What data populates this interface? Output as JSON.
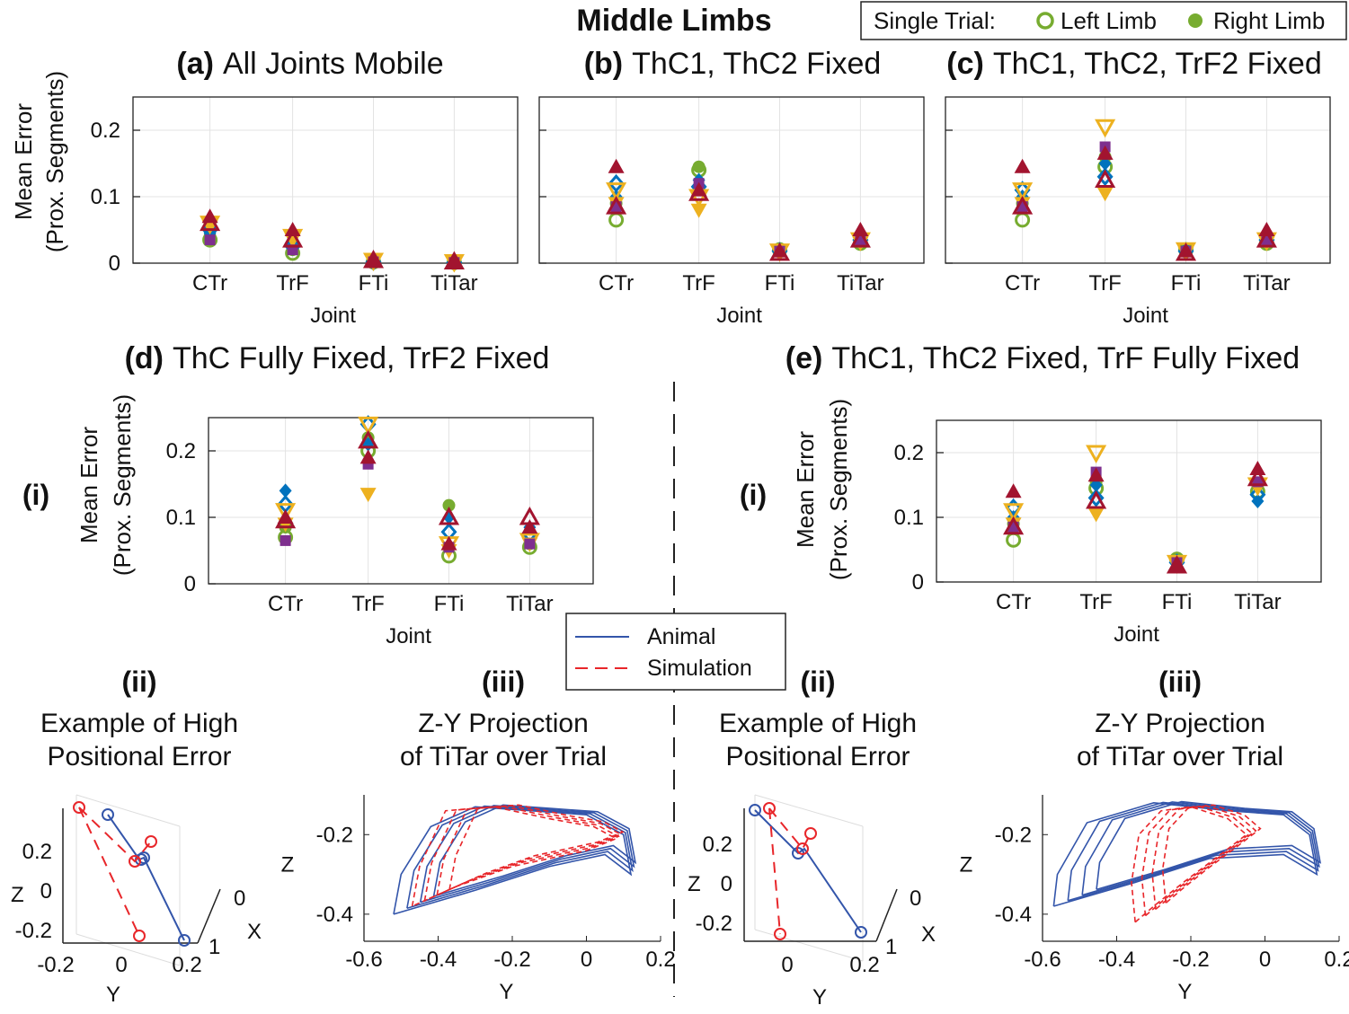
{
  "figure": {
    "main_title": "Middle Limbs",
    "legend": {
      "prefix": "Single Trial:",
      "left": "Left Limb",
      "right": "Right Limb"
    },
    "line_legend": {
      "animal": "Animal",
      "simulation": "Simulation"
    },
    "section_labels": {
      "i": "(i)",
      "ii": "(ii)",
      "iii": "(iii)"
    },
    "ii_title": [
      "Example of High",
      "Positional Error"
    ],
    "iii_title": [
      "Z-Y Projection",
      "of TiTar over Trial"
    ],
    "ylabel": [
      "Mean Error",
      "(Prox. Segments)"
    ],
    "xlabel": "Joint",
    "colors": {
      "green": "#77ac30",
      "blue": "#0072bd",
      "yellow": "#edb120",
      "purple": "#7e2f8e",
      "red": "#a2142f",
      "animal": "#3355aa",
      "simulation": "#e8262a"
    }
  },
  "chart_data": [
    {
      "id": "a",
      "type": "scatter",
      "label": "(a)",
      "title": "All Joints Mobile",
      "categories": [
        "CTr",
        "TrF",
        "FTi",
        "TiTar"
      ],
      "ylim": [
        0,
        0.25
      ],
      "yticks": [
        "0",
        "0.1",
        "0.2"
      ],
      "show_ytick_labels": true,
      "series": [
        {
          "marker": "circle-open",
          "color": "green",
          "values": [
            0.035,
            0.015,
            0.002,
            0.001
          ]
        },
        {
          "marker": "circle-filled",
          "color": "green",
          "values": [
            0.04,
            0.02,
            0.003,
            0.001
          ]
        },
        {
          "marker": "diamond-open",
          "color": "blue",
          "values": [
            0.05,
            0.025,
            0.002,
            0.001
          ]
        },
        {
          "marker": "diamond-filled",
          "color": "blue",
          "values": [
            0.045,
            0.03,
            0.003,
            0.002
          ]
        },
        {
          "marker": "tri-down-open",
          "color": "yellow",
          "values": [
            0.06,
            0.04,
            0.004,
            0.002
          ]
        },
        {
          "marker": "tri-down-filled",
          "color": "yellow",
          "values": [
            0.055,
            0.035,
            0.003,
            0.002
          ]
        },
        {
          "marker": "square-filled",
          "color": "purple",
          "values": [
            0.035,
            0.02,
            0.002,
            0.001
          ]
        },
        {
          "marker": "tri-up-open",
          "color": "red",
          "values": [
            0.06,
            0.035,
            0.004,
            0.002
          ]
        },
        {
          "marker": "tri-up-filled",
          "color": "red",
          "values": [
            0.07,
            0.05,
            0.005,
            0.002
          ]
        }
      ]
    },
    {
      "id": "b",
      "type": "scatter",
      "label": "(b)",
      "title": "ThC1, ThC2 Fixed",
      "categories": [
        "CTr",
        "TrF",
        "FTi",
        "TiTar"
      ],
      "ylim": [
        0,
        0.25
      ],
      "yticks": [
        "0",
        "0.1",
        "0.2"
      ],
      "show_ytick_labels": false,
      "series": [
        {
          "marker": "circle-open",
          "color": "green",
          "values": [
            0.065,
            0.14,
            0.02,
            0.03
          ]
        },
        {
          "marker": "circle-filled",
          "color": "green",
          "values": [
            0.09,
            0.145,
            0.022,
            0.035
          ]
        },
        {
          "marker": "diamond-open",
          "color": "blue",
          "values": [
            0.12,
            0.115,
            0.018,
            0.035
          ]
        },
        {
          "marker": "diamond-filled",
          "color": "blue",
          "values": [
            0.1,
            0.125,
            0.02,
            0.04
          ]
        },
        {
          "marker": "tri-down-open",
          "color": "yellow",
          "values": [
            0.11,
            0.1,
            0.018,
            0.035
          ]
        },
        {
          "marker": "tri-down-filled",
          "color": "yellow",
          "values": [
            0.09,
            0.08,
            0.015,
            0.03
          ]
        },
        {
          "marker": "square-filled",
          "color": "purple",
          "values": [
            0.085,
            0.12,
            0.018,
            0.035
          ]
        },
        {
          "marker": "tri-up-open",
          "color": "red",
          "values": [
            0.085,
            0.105,
            0.015,
            0.035
          ]
        },
        {
          "marker": "tri-up-filled",
          "color": "red",
          "values": [
            0.145,
            0.11,
            0.018,
            0.05
          ]
        }
      ]
    },
    {
      "id": "c",
      "type": "scatter",
      "label": "(c)",
      "title": "ThC1, ThC2, TrF2 Fixed",
      "categories": [
        "CTr",
        "TrF",
        "FTi",
        "TiTar"
      ],
      "ylim": [
        0,
        0.25
      ],
      "yticks": [
        "0",
        "0.1",
        "0.2"
      ],
      "show_ytick_labels": false,
      "series": [
        {
          "marker": "circle-open",
          "color": "green",
          "values": [
            0.065,
            0.145,
            0.02,
            0.03
          ]
        },
        {
          "marker": "circle-filled",
          "color": "green",
          "values": [
            0.09,
            0.16,
            0.022,
            0.035
          ]
        },
        {
          "marker": "diamond-open",
          "color": "blue",
          "values": [
            0.11,
            0.13,
            0.018,
            0.035
          ]
        },
        {
          "marker": "diamond-filled",
          "color": "blue",
          "values": [
            0.1,
            0.15,
            0.02,
            0.04
          ]
        },
        {
          "marker": "tri-down-open",
          "color": "yellow",
          "values": [
            0.11,
            0.205,
            0.02,
            0.035
          ]
        },
        {
          "marker": "tri-down-filled",
          "color": "yellow",
          "values": [
            0.09,
            0.105,
            0.015,
            0.03
          ]
        },
        {
          "marker": "square-filled",
          "color": "purple",
          "values": [
            0.085,
            0.175,
            0.018,
            0.035
          ]
        },
        {
          "marker": "tri-up-open",
          "color": "red",
          "values": [
            0.085,
            0.125,
            0.015,
            0.035
          ]
        },
        {
          "marker": "tri-up-filled",
          "color": "red",
          "values": [
            0.145,
            0.165,
            0.018,
            0.05
          ]
        }
      ]
    },
    {
      "id": "d",
      "type": "scatter",
      "label": "(d)",
      "title": "ThC Fully Fixed, TrF2 Fixed",
      "categories": [
        "CTr",
        "TrF",
        "FTi",
        "TiTar"
      ],
      "ylim": [
        0,
        0.25
      ],
      "yticks": [
        "0",
        "0.1",
        "0.2"
      ],
      "show_ytick_labels": true,
      "series": [
        {
          "marker": "circle-open",
          "color": "green",
          "values": [
            0.07,
            0.2,
            0.042,
            0.055
          ]
        },
        {
          "marker": "circle-filled",
          "color": "green",
          "values": [
            0.085,
            0.22,
            0.118,
            0.06
          ]
        },
        {
          "marker": "diamond-open",
          "color": "blue",
          "values": [
            0.12,
            0.24,
            0.078,
            0.075
          ]
        },
        {
          "marker": "diamond-filled",
          "color": "blue",
          "values": [
            0.14,
            0.21,
            0.1,
            0.085
          ]
        },
        {
          "marker": "tri-down-open",
          "color": "yellow",
          "values": [
            0.11,
            0.24,
            0.06,
            0.065
          ]
        },
        {
          "marker": "tri-down-filled",
          "color": "yellow",
          "values": [
            0.09,
            0.135,
            0.05,
            0.06
          ]
        },
        {
          "marker": "square-filled",
          "color": "purple",
          "values": [
            0.065,
            0.18,
            0.055,
            0.06
          ]
        },
        {
          "marker": "tri-up-open",
          "color": "red",
          "values": [
            0.095,
            0.215,
            0.1,
            0.1
          ]
        },
        {
          "marker": "tri-up-filled",
          "color": "red",
          "values": [
            0.1,
            0.19,
            0.06,
            0.085
          ]
        }
      ]
    },
    {
      "id": "e",
      "type": "scatter",
      "label": "(e)",
      "title": "ThC1, ThC2 Fixed, TrF Fully Fixed",
      "categories": [
        "CTr",
        "TrF",
        "FTi",
        "TiTar"
      ],
      "ylim": [
        0,
        0.25
      ],
      "yticks": [
        "0",
        "0.1",
        "0.2"
      ],
      "show_ytick_labels": true,
      "series": [
        {
          "marker": "circle-open",
          "color": "green",
          "values": [
            0.065,
            0.145,
            0.035,
            0.14
          ]
        },
        {
          "marker": "circle-filled",
          "color": "green",
          "values": [
            0.09,
            0.155,
            0.037,
            0.15
          ]
        },
        {
          "marker": "diamond-open",
          "color": "blue",
          "values": [
            0.115,
            0.13,
            0.03,
            0.135
          ]
        },
        {
          "marker": "diamond-filled",
          "color": "blue",
          "values": [
            0.1,
            0.15,
            0.03,
            0.125
          ]
        },
        {
          "marker": "tri-down-open",
          "color": "yellow",
          "values": [
            0.11,
            0.2,
            0.03,
            0.15
          ]
        },
        {
          "marker": "tri-down-filled",
          "color": "yellow",
          "values": [
            0.09,
            0.105,
            0.025,
            0.145
          ]
        },
        {
          "marker": "square-filled",
          "color": "purple",
          "values": [
            0.085,
            0.17,
            0.03,
            0.155
          ]
        },
        {
          "marker": "tri-up-open",
          "color": "red",
          "values": [
            0.085,
            0.125,
            0.025,
            0.16
          ]
        },
        {
          "marker": "tri-up-filled",
          "color": "red",
          "values": [
            0.14,
            0.165,
            0.025,
            0.175
          ]
        }
      ]
    },
    {
      "id": "d-iii",
      "type": "line",
      "xlabel": "Y",
      "ylabel": "Z",
      "xlim": [
        -0.6,
        0.2
      ],
      "ylim": [
        -0.45,
        -0.1
      ],
      "xticks": [
        "-0.6",
        "-0.4",
        "-0.2",
        "0",
        "0.2"
      ],
      "yticks": [
        "-0.4",
        "-0.2"
      ],
      "series": [
        {
          "name": "Animal",
          "points": [
            [
              -0.52,
              -0.4
            ],
            [
              -0.5,
              -0.3
            ],
            [
              -0.42,
              -0.18
            ],
            [
              -0.3,
              -0.13
            ],
            [
              -0.15,
              -0.14
            ],
            [
              0,
              -0.15
            ],
            [
              0.1,
              -0.2
            ],
            [
              0.12,
              -0.3
            ],
            [
              0.05,
              -0.25
            ],
            [
              -0.1,
              -0.28
            ],
            [
              -0.3,
              -0.34
            ],
            [
              -0.52,
              -0.4
            ]
          ]
        },
        {
          "name": "Simulation",
          "points": [
            [
              -0.47,
              -0.38
            ],
            [
              -0.45,
              -0.28
            ],
            [
              -0.38,
              -0.14
            ],
            [
              -0.25,
              -0.13
            ],
            [
              -0.1,
              -0.16
            ],
            [
              0.02,
              -0.18
            ],
            [
              0.08,
              -0.21
            ],
            [
              0,
              -0.24
            ],
            [
              -0.2,
              -0.28
            ],
            [
              -0.35,
              -0.33
            ],
            [
              -0.47,
              -0.38
            ]
          ]
        }
      ]
    },
    {
      "id": "e-iii",
      "type": "line",
      "xlabel": "Y",
      "ylabel": "Z",
      "xlim": [
        -0.6,
        0.2
      ],
      "ylim": [
        -0.45,
        -0.1
      ],
      "xticks": [
        "-0.6",
        "-0.4",
        "-0.2",
        "0",
        "0.2"
      ],
      "yticks": [
        "-0.4",
        "-0.2"
      ],
      "series": [
        {
          "name": "Animal",
          "points": [
            [
              -0.57,
              -0.38
            ],
            [
              -0.56,
              -0.3
            ],
            [
              -0.48,
              -0.17
            ],
            [
              -0.3,
              -0.12
            ],
            [
              -0.1,
              -0.14
            ],
            [
              0.05,
              -0.15
            ],
            [
              0.12,
              -0.2
            ],
            [
              0.14,
              -0.3
            ],
            [
              0.05,
              -0.25
            ],
            [
              -0.15,
              -0.26
            ],
            [
              -0.35,
              -0.32
            ],
            [
              -0.57,
              -0.38
            ]
          ]
        },
        {
          "name": "Simulation",
          "points": [
            [
              -0.35,
              -0.42
            ],
            [
              -0.36,
              -0.32
            ],
            [
              -0.34,
              -0.2
            ],
            [
              -0.28,
              -0.14
            ],
            [
              -0.2,
              -0.13
            ],
            [
              -0.1,
              -0.16
            ],
            [
              -0.05,
              -0.2
            ],
            [
              -0.12,
              -0.25
            ],
            [
              -0.22,
              -0.32
            ],
            [
              -0.3,
              -0.38
            ],
            [
              -0.35,
              -0.42
            ]
          ]
        }
      ]
    },
    {
      "id": "d-ii",
      "type": "line",
      "view": "3d",
      "xlabel": "Y",
      "ylabel": "Z",
      "zlabel": "X",
      "yticks": [
        "0.2",
        "0",
        "-0.2"
      ],
      "xticks": [
        "-0.2",
        "0",
        "0.2"
      ],
      "zticks": [
        "0",
        "1"
      ]
    },
    {
      "id": "e-ii",
      "type": "line",
      "view": "3d",
      "xlabel": "Y",
      "ylabel": "Z",
      "zlabel": "X",
      "yticks": [
        "0.2",
        "0",
        "-0.2"
      ],
      "xticks": [
        "0",
        "0.2"
      ],
      "zticks": [
        "0",
        "1"
      ]
    }
  ]
}
